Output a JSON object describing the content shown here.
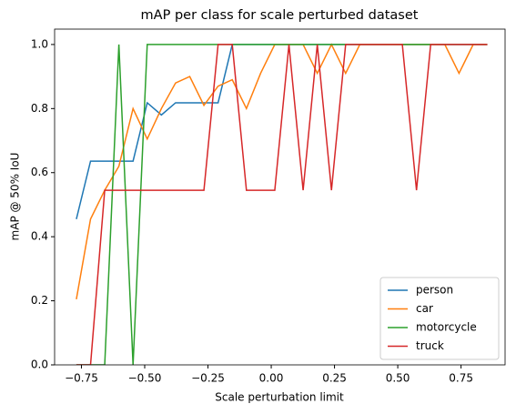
{
  "chart_data": {
    "type": "line",
    "title": "mAP per class for scale perturbed dataset",
    "xlabel": "Scale perturbation limit",
    "ylabel": "mAP @ 50% IoU",
    "x": [
      -0.77,
      -0.714,
      -0.658,
      -0.602,
      -0.546,
      -0.49,
      -0.434,
      -0.378,
      -0.322,
      -0.266,
      -0.21,
      -0.154,
      -0.098,
      -0.042,
      0.014,
      0.07,
      0.126,
      0.182,
      0.238,
      0.294,
      0.35,
      0.406,
      0.462,
      0.518,
      0.574,
      0.63,
      0.686,
      0.742,
      0.798,
      0.854
    ],
    "series": [
      {
        "name": "person",
        "color": "#1f77b4",
        "values": [
          0.455,
          0.636,
          0.636,
          0.636,
          0.636,
          0.818,
          0.78,
          0.818,
          0.818,
          0.818,
          0.818,
          1.0,
          1.0,
          1.0,
          1.0,
          1.0,
          1.0,
          1.0,
          1.0,
          1.0,
          1.0,
          1.0,
          1.0,
          1.0,
          1.0,
          1.0,
          1.0,
          1.0,
          1.0,
          1.0
        ]
      },
      {
        "name": "car",
        "color": "#ff7f0e",
        "values": [
          0.205,
          0.455,
          0.545,
          0.62,
          0.8,
          0.705,
          0.8,
          0.88,
          0.9,
          0.81,
          0.87,
          0.89,
          0.8,
          0.91,
          1.0,
          1.0,
          1.0,
          0.91,
          1.0,
          0.91,
          1.0,
          1.0,
          1.0,
          1.0,
          1.0,
          1.0,
          1.0,
          0.91,
          1.0,
          1.0
        ]
      },
      {
        "name": "motorcycle",
        "color": "#2ca02c",
        "values": [
          0,
          0,
          0,
          1.0,
          0,
          1.0,
          1.0,
          1.0,
          1.0,
          1.0,
          1.0,
          1.0,
          1.0,
          1.0,
          1.0,
          1.0,
          1.0,
          1.0,
          1.0,
          1.0,
          1.0,
          1.0,
          1.0,
          1.0,
          1.0,
          1.0,
          1.0,
          1.0,
          1.0,
          1.0
        ]
      },
      {
        "name": "truck",
        "color": "#d62728",
        "values": [
          0,
          0,
          0.545,
          0.545,
          0.545,
          0.545,
          0.545,
          0.545,
          0.545,
          0.545,
          1.0,
          1.0,
          0.545,
          0.545,
          0.545,
          1.0,
          0.545,
          1.0,
          0.545,
          1.0,
          1.0,
          1.0,
          1.0,
          1.0,
          0.545,
          1.0,
          1.0,
          1.0,
          1.0,
          1.0
        ]
      }
    ],
    "xlim": [
      -0.856,
      0.924
    ],
    "ylim": [
      0,
      1.048
    ],
    "xticks": [
      {
        "value": -0.75,
        "label": "−0.75"
      },
      {
        "value": -0.5,
        "label": "−0.50"
      },
      {
        "value": -0.25,
        "label": "−0.25"
      },
      {
        "value": 0,
        "label": "0.00"
      },
      {
        "value": 0.25,
        "label": "0.25"
      },
      {
        "value": 0.5,
        "label": "0.50"
      },
      {
        "value": 0.75,
        "label": "0.75"
      }
    ],
    "yticks": [
      {
        "value": 0,
        "label": "0.0"
      },
      {
        "value": 0.2,
        "label": "0.2"
      },
      {
        "value": 0.4,
        "label": "0.4"
      },
      {
        "value": 0.6,
        "label": "0.6"
      },
      {
        "value": 0.8,
        "label": "0.8"
      },
      {
        "value": 1.0,
        "label": "1.0"
      }
    ],
    "grid": false,
    "legend": "lower right"
  }
}
